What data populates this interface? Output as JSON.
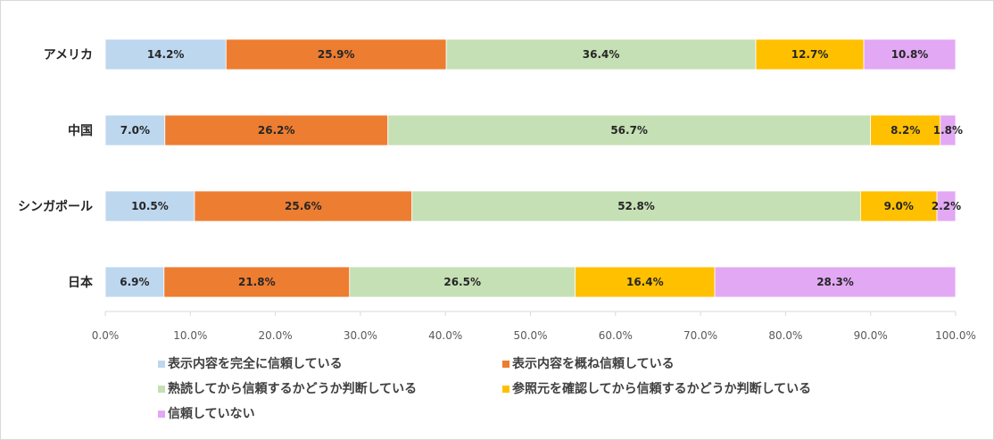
{
  "chart_data": {
    "type": "bar",
    "orientation": "horizontal-stacked-100",
    "title": "",
    "xlabel": "",
    "ylabel": "",
    "xlim": [
      0,
      100
    ],
    "tick_labels": [
      "0.0%",
      "10.0%",
      "20.0%",
      "30.0%",
      "40.0%",
      "50.0%",
      "60.0%",
      "70.0%",
      "80.0%",
      "90.0%",
      "100.0%"
    ],
    "categories": [
      "アメリカ",
      "中国",
      "シンガポール",
      "日本"
    ],
    "series": [
      {
        "name": "表示内容を完全に信頼している",
        "color": "#bdd7ee",
        "values": [
          14.2,
          7.0,
          10.5,
          6.9
        ],
        "labels": [
          "14.2%",
          "7.0%",
          "10.5%",
          "6.9%"
        ]
      },
      {
        "name": "表示内容を概ね信頼している",
        "color": "#ed7d31",
        "values": [
          25.9,
          26.2,
          25.6,
          21.8
        ],
        "labels": [
          "25.9%",
          "26.2%",
          "25.6%",
          "21.8%"
        ]
      },
      {
        "name": "熟読してから信頼するかどうか判断している",
        "color": "#c5e0b4",
        "values": [
          36.4,
          56.7,
          52.8,
          26.5
        ],
        "labels": [
          "36.4%",
          "56.7%",
          "52.8%",
          "26.5%"
        ]
      },
      {
        "name": "参照元を確認してから信頼するかどうか判断している",
        "color": "#ffc000",
        "values": [
          12.7,
          8.2,
          9.0,
          16.4
        ],
        "labels": [
          "12.7%",
          "8.2%",
          "9.0%",
          "16.4%"
        ]
      },
      {
        "name": "信頼していない",
        "color": "#e2a8f4",
        "values": [
          10.8,
          1.8,
          2.2,
          28.3
        ],
        "labels": [
          "10.8%",
          "1.8%",
          "2.2%",
          "28.3%"
        ]
      }
    ],
    "legend_position": "bottom",
    "grid": false
  }
}
